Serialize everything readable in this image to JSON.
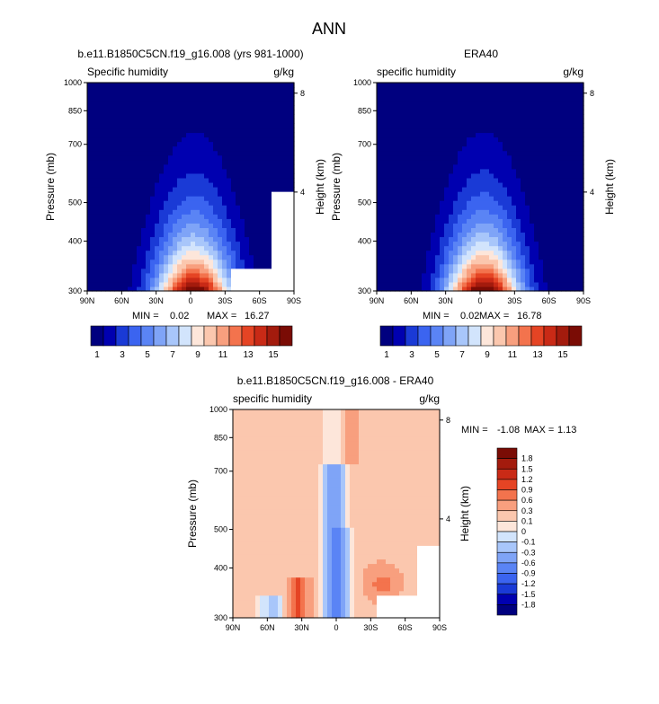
{
  "main_title": "ANN",
  "chart_data": [
    {
      "type": "heatmap",
      "title": "b.e11.B1850C5CN.f19_g16.008 (yrs 981-1000)",
      "left_subtitle": "Specific humidity",
      "right_subtitle": "g/kg",
      "ylabel": "Pressure (mb)",
      "y2label": "Height (km)",
      "x_ticks": [
        "90N",
        "60N",
        "30N",
        "0",
        "30S",
        "60S",
        "90S"
      ],
      "y_ticks": [
        "300",
        "400",
        "500",
        "700",
        "850",
        "1000"
      ],
      "y2_ticks": [
        "8",
        "4"
      ],
      "stats": {
        "min_label": "MIN =",
        "min": "0.02",
        "max_label": "MAX =",
        "max": "16.27"
      },
      "xlim": [
        90,
        -90
      ],
      "ylim": [
        1000,
        300
      ],
      "field": {
        "peak": 16.27,
        "peak_lat": -3,
        "scale_height": 2.3,
        "lat_width": 34,
        "missing": "polar-south-lower"
      },
      "colorbar": {
        "orientation": "horizontal",
        "levels": [
          "1",
          "3",
          "5",
          "7",
          "9",
          "11",
          "13",
          "15"
        ],
        "colors": [
          "#00007f",
          "#0000b0",
          "#1a3ad6",
          "#3b64f0",
          "#5a84f5",
          "#7fa4f7",
          "#a8c6fa",
          "#d2e4fc",
          "#fde6da",
          "#fbc7ae",
          "#f89f7e",
          "#f3734d",
          "#e54424",
          "#c92a16",
          "#a31b0d",
          "#7a0c05"
        ]
      }
    },
    {
      "type": "heatmap",
      "title": "ERA40",
      "left_subtitle": "specific humidity",
      "right_subtitle": "g/kg",
      "ylabel": "Pressure (mb)",
      "y2label": "Height (km)",
      "x_ticks": [
        "90N",
        "60N",
        "30N",
        "0",
        "30S",
        "60S",
        "90S"
      ],
      "y_ticks": [
        "300",
        "400",
        "500",
        "700",
        "850",
        "1000"
      ],
      "y2_ticks": [
        "8",
        "4"
      ],
      "stats": {
        "min_label": "MIN =",
        "min": "0.02",
        "max_label": "MAX =",
        "max": "16.78"
      },
      "xlim": [
        90,
        -90
      ],
      "ylim": [
        1000,
        300
      ],
      "field": {
        "peak": 16.78,
        "peak_lat": -3,
        "scale_height": 2.3,
        "lat_width": 33,
        "missing": "none"
      },
      "colorbar": {
        "orientation": "horizontal",
        "levels": [
          "1",
          "3",
          "5",
          "7",
          "9",
          "11",
          "13",
          "15"
        ],
        "colors": [
          "#00007f",
          "#0000b0",
          "#1a3ad6",
          "#3b64f0",
          "#5a84f5",
          "#7fa4f7",
          "#a8c6fa",
          "#d2e4fc",
          "#fde6da",
          "#fbc7ae",
          "#f89f7e",
          "#f3734d",
          "#e54424",
          "#c92a16",
          "#a31b0d",
          "#7a0c05"
        ]
      }
    },
    {
      "type": "heatmap",
      "title": "b.e11.B1850C5CN.f19_g16.008 - ERA40",
      "left_subtitle": "specific humidity",
      "right_subtitle": "g/kg",
      "ylabel": "Pressure (mb)",
      "y2label": "Height (km)",
      "x_ticks": [
        "90N",
        "60N",
        "30N",
        "0",
        "30S",
        "60S",
        "90S"
      ],
      "y_ticks": [
        "300",
        "400",
        "500",
        "700",
        "850",
        "1000"
      ],
      "y2_ticks": [
        "8",
        "4"
      ],
      "stats": {
        "min_label": "MIN =",
        "min": "-1.08",
        "max_label": "MAX =",
        "max": "1.13"
      },
      "xlim": [
        90,
        -90
      ],
      "ylim": [
        1000,
        300
      ],
      "field": {
        "type": "difference",
        "min": -1.08,
        "max": 1.13,
        "missing": "polar-south-lower"
      },
      "colorbar": {
        "orientation": "vertical",
        "levels": [
          "1.8",
          "1.5",
          "1.2",
          "0.9",
          "0.6",
          "0.3",
          "0.1",
          "0",
          "-0.1",
          "-0.3",
          "-0.6",
          "-0.9",
          "-1.2",
          "-1.5",
          "-1.8"
        ],
        "colors": [
          "#7a0c05",
          "#a31b0d",
          "#c92a16",
          "#e54424",
          "#f3734d",
          "#f89f7e",
          "#fbc7ae",
          "#fde6da",
          "#d2e4fc",
          "#a8c6fa",
          "#7fa4f7",
          "#5a84f5",
          "#3b64f0",
          "#1a3ad6",
          "#0000b0",
          "#00007f"
        ]
      }
    }
  ]
}
